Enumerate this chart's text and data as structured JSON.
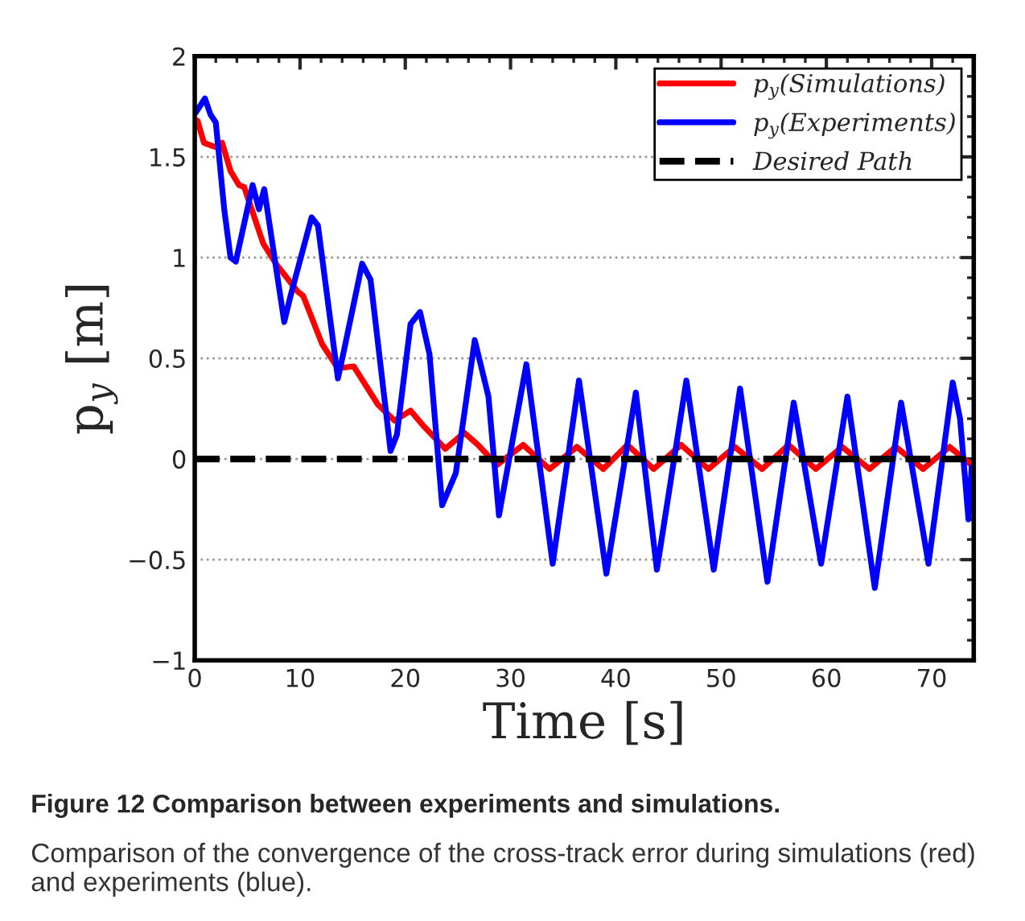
{
  "chart_data": {
    "type": "line",
    "xlabel": "Time [s]",
    "ylabel": "p$_{y}$ [m]",
    "xlim": [
      0,
      74
    ],
    "ylim": [
      -1,
      2
    ],
    "xticks": [
      0,
      10,
      20,
      30,
      40,
      50,
      60,
      70
    ],
    "yticks": [
      {
        "value": -1,
        "label": "−1"
      },
      {
        "value": -0.5,
        "label": "−0.5"
      },
      0,
      0.5,
      1,
      1.5,
      2
    ],
    "grid": "y",
    "legend": "top right",
    "series": [
      {
        "name": "p$_{y}$(Simulations)",
        "color": "#ff0000",
        "line_style": "solid",
        "x": [
          0.26,
          0.87,
          1.9,
          2.6,
          3.4,
          4.2,
          4.7,
          6.5,
          7.7,
          9.8,
          10.3,
          12.1,
          13.6,
          15.1,
          17.4,
          19.0,
          20.5,
          21.8,
          23.8,
          25.6,
          26.9,
          28.7,
          31.2,
          33.7,
          36.3,
          38.8,
          41.1,
          43.6,
          46.2,
          48.8,
          51.3,
          53.9,
          56.4,
          59.0,
          61.5,
          64.1,
          66.6,
          69.2,
          71.7,
          73.8
        ],
        "values": [
          1.68,
          1.57,
          1.55,
          1.57,
          1.43,
          1.36,
          1.35,
          1.07,
          0.97,
          0.83,
          0.81,
          0.57,
          0.45,
          0.46,
          0.27,
          0.19,
          0.24,
          0.16,
          0.05,
          0.13,
          0.07,
          -0.03,
          0.07,
          -0.05,
          0.06,
          -0.05,
          0.07,
          -0.05,
          0.07,
          -0.05,
          0.06,
          -0.05,
          0.07,
          -0.05,
          0.06,
          -0.05,
          0.06,
          -0.05,
          0.06,
          -0.03
        ]
      },
      {
        "name": "p$_{y}$(Experiments)",
        "color": "#0000ff",
        "line_style": "solid",
        "x": [
          0.1,
          0.97,
          1.5,
          2.0,
          2.8,
          3.4,
          3.9,
          5.5,
          6.1,
          6.6,
          8.5,
          9.1,
          11.1,
          11.7,
          13.6,
          14.1,
          15.9,
          16.7,
          18.6,
          19.2,
          20.5,
          21.4,
          22.3,
          23.5,
          24.8,
          26.6,
          27.9,
          28.9,
          31.5,
          34.0,
          36.5,
          39.1,
          41.9,
          43.9,
          46.7,
          49.3,
          51.8,
          54.4,
          56.9,
          59.5,
          62.0,
          64.6,
          67.1,
          69.7,
          72.0,
          72.7,
          73.5,
          73.8
        ],
        "values": [
          1.72,
          1.79,
          1.71,
          1.67,
          1.24,
          1.0,
          0.98,
          1.36,
          1.24,
          1.34,
          0.68,
          0.81,
          1.2,
          1.16,
          0.4,
          0.52,
          0.97,
          0.89,
          0.04,
          0.12,
          0.67,
          0.73,
          0.52,
          -0.23,
          -0.07,
          0.59,
          0.31,
          -0.28,
          0.47,
          -0.52,
          0.39,
          -0.57,
          0.33,
          -0.55,
          0.39,
          -0.55,
          0.35,
          -0.61,
          0.28,
          -0.52,
          0.31,
          -0.64,
          0.28,
          -0.52,
          0.38,
          0.2,
          -0.3,
          -0.04
        ]
      },
      {
        "name": "Desired Path",
        "color": "#000000",
        "line_style": "dashed",
        "x": [
          0,
          74
        ],
        "values": [
          0,
          0
        ]
      }
    ],
    "annotations": [
      "Figure 12 Comparison between experiments and simulations.",
      "Comparison of the convergence of the cross-track error during simulations (red) and experiments (blue)."
    ]
  }
}
